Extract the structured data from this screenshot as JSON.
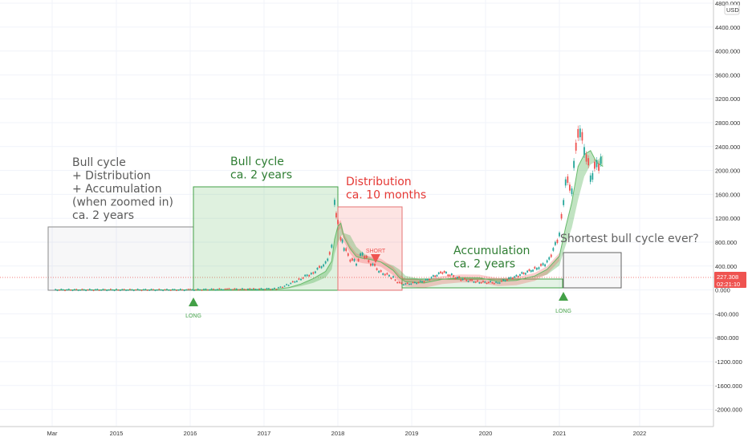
{
  "chart_data": {
    "type": "line",
    "currency": "USD",
    "x_axis": {
      "ticks": [
        "Mar",
        "2015",
        "2016",
        "2017",
        "2018",
        "2019",
        "2020",
        "2021",
        "2022"
      ]
    },
    "y_axis": {
      "ticks": [
        "4800.000",
        "4400.000",
        "4000.000",
        "3600.000",
        "3200.000",
        "2800.000",
        "2400.000",
        "2000.000",
        "1600.000",
        "1200.000",
        "800.000",
        "400.000",
        "0.000",
        "-400.000",
        "-800.000",
        "-1200.000",
        "-1600.000",
        "-2000.000"
      ],
      "ylim": [
        -2200,
        4900
      ],
      "grid": true
    },
    "price_label": {
      "value": "227.308",
      "countdown": "02:21:10"
    },
    "series": [
      {
        "x": [
          "2014-03",
          "2015-01",
          "2016-01",
          "2016-07",
          "2016-11",
          "2017-03",
          "2017-05",
          "2017-07",
          "2017-09",
          "2017-11",
          "2017-12",
          "2017-12-15",
          "2018-01",
          "2018-01-15",
          "2018-02",
          "2018-03",
          "2018-04",
          "2018-05",
          "2018-06",
          "2018-08",
          "2018-10",
          "2018-11",
          "2018-12",
          "2019-03",
          "2019-06",
          "2019-09",
          "2019-12",
          "2020-03",
          "2020-06",
          "2020-09",
          "2020-11",
          "2021-01",
          "2021-02",
          "2021-03",
          "2021-04",
          "2021-05",
          "2021-06",
          "2021-07",
          "2021-08"
        ],
        "y": [
          1,
          1,
          1,
          12,
          10,
          18,
          90,
          190,
          290,
          450,
          700,
          1400,
          1100,
          850,
          700,
          520,
          450,
          620,
          480,
          300,
          200,
          110,
          95,
          140,
          300,
          180,
          130,
          120,
          230,
          350,
          450,
          900,
          1800,
          1700,
          2700,
          2400,
          1900,
          2100,
          2200
        ]
      }
    ],
    "annotations": [
      {
        "lines": [
          "Bull cycle",
          "+ Distribution",
          "+ Accumulation",
          "(when zoomed in)",
          "ca. 2 years"
        ],
        "color": "#5a5a5a"
      },
      {
        "lines": [
          "Bull cycle",
          "ca. 2 years"
        ],
        "color": "#2e7d32"
      },
      {
        "lines": [
          "Distribution",
          "ca. 10 months"
        ],
        "color": "#e53935"
      },
      {
        "lines": [
          "Accumulation",
          "ca. 2 years"
        ],
        "color": "#2e7d32"
      },
      {
        "lines": [
          "Shortest bull cycle ever?"
        ],
        "color": "#616161"
      }
    ],
    "markers": [
      {
        "label": "LONG",
        "shape": "up-triangle",
        "color": "#43a047"
      },
      {
        "label": "SHORT",
        "shape": "down-triangle",
        "color": "#ef5350"
      },
      {
        "label": "LONG",
        "shape": "up-triangle",
        "color": "#43a047"
      }
    ]
  }
}
